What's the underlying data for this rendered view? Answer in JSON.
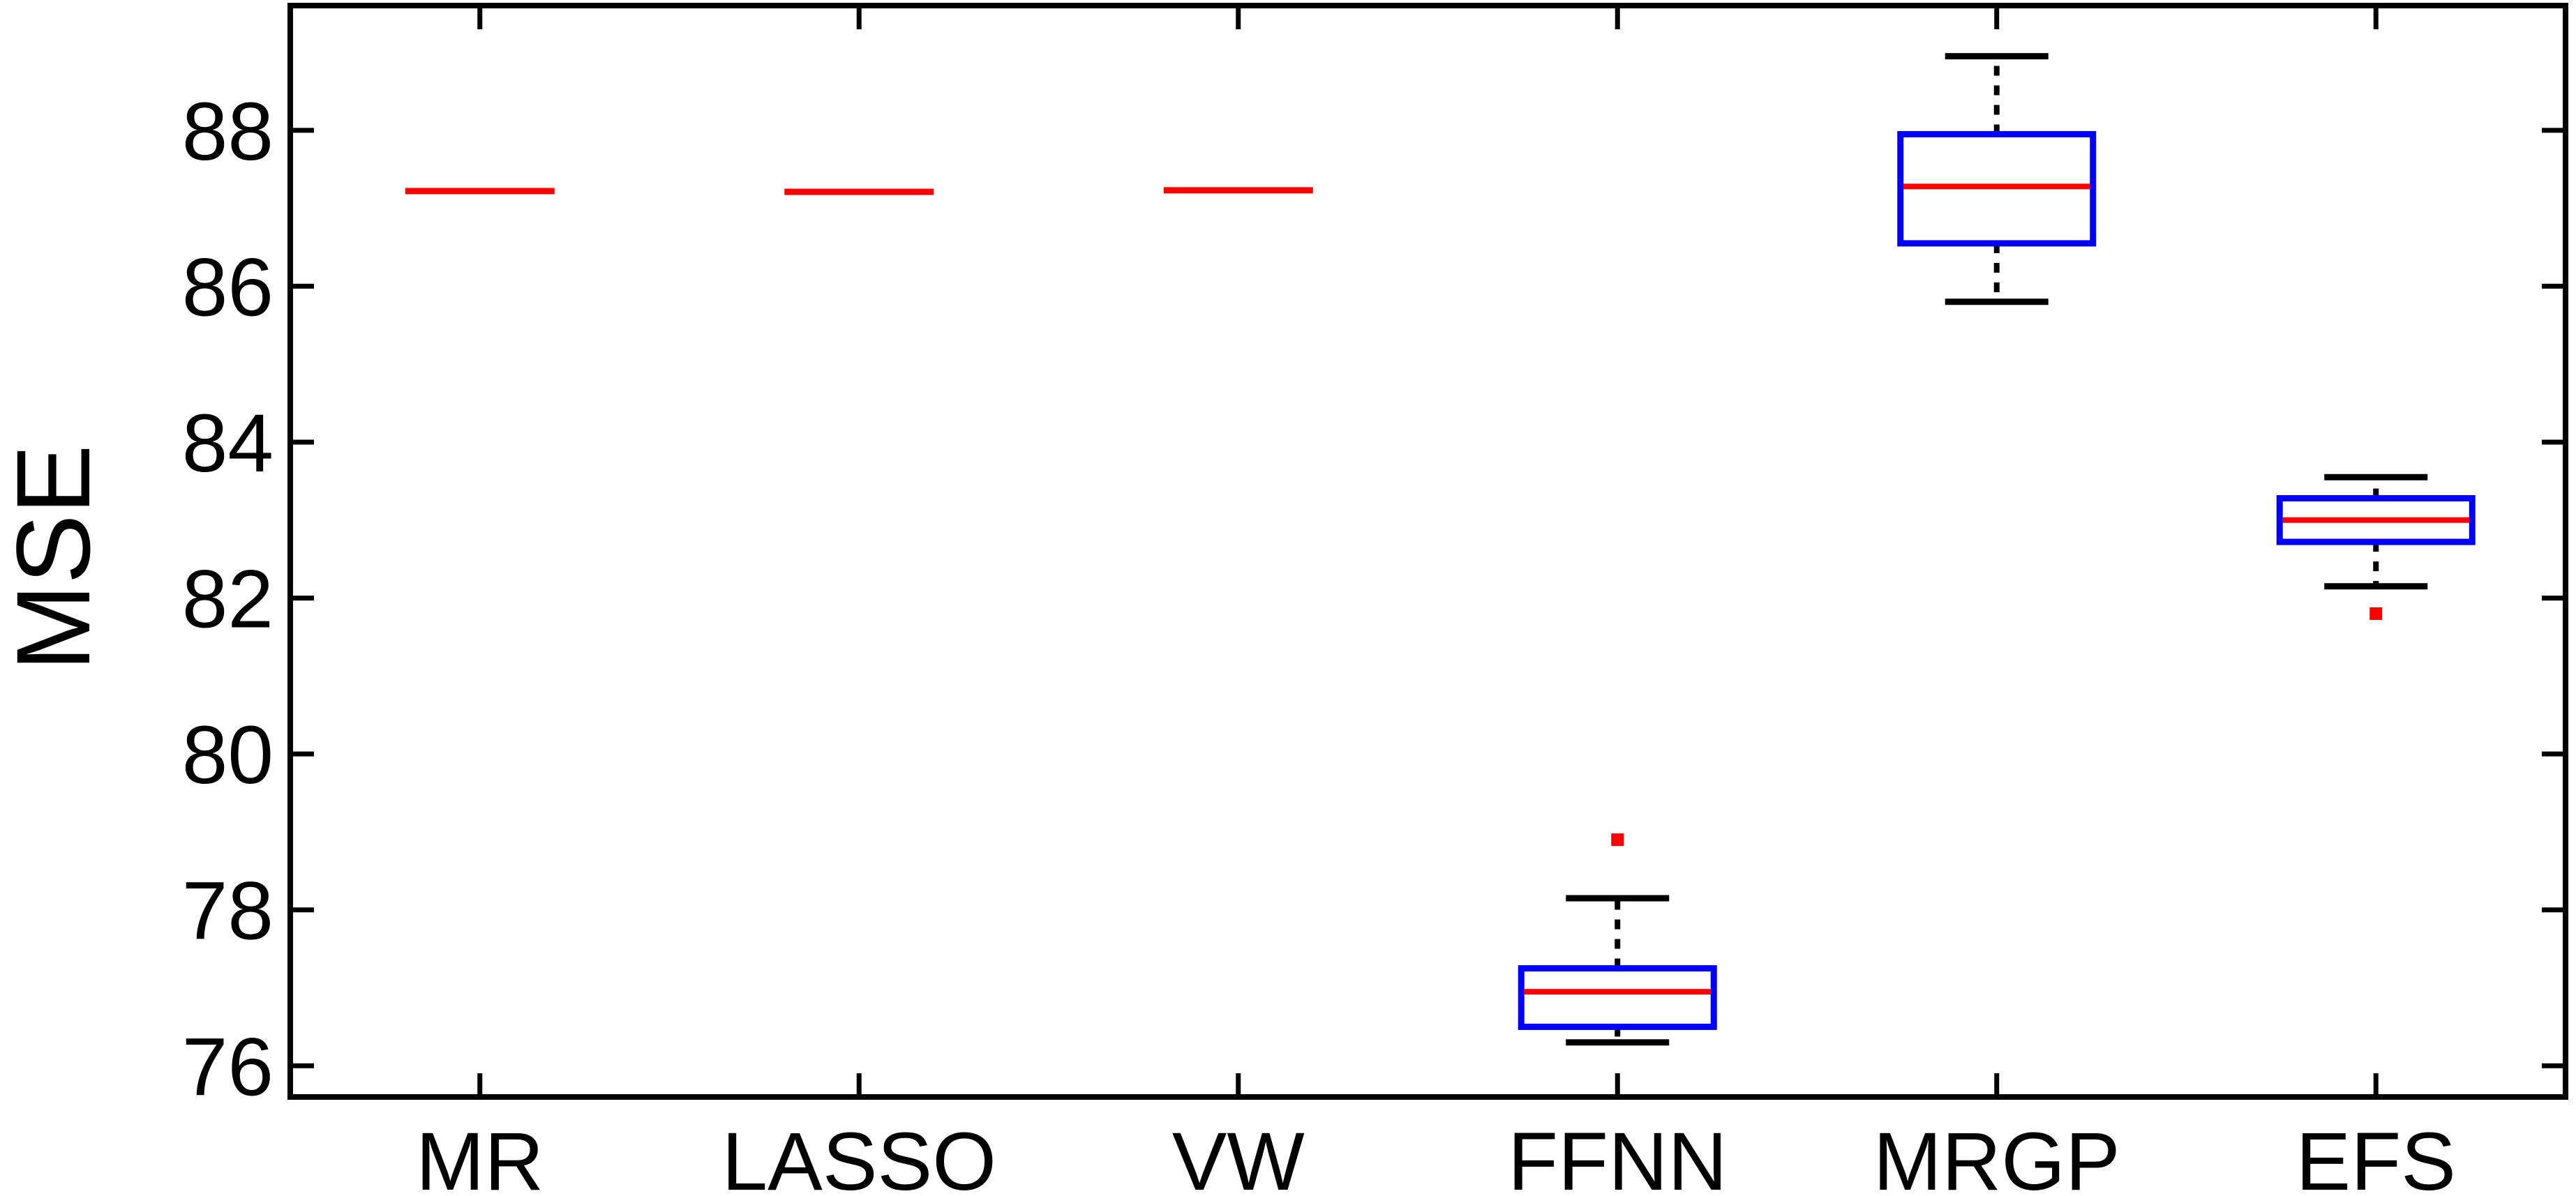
{
  "chart_data": {
    "type": "box",
    "title": "",
    "xlabel": "",
    "ylabel": "MSE",
    "ylim": [
      75.6,
      89.6
    ],
    "yticks": [
      76,
      78,
      80,
      82,
      84,
      86,
      88
    ],
    "grid": false,
    "legend": "none",
    "colors": {
      "box": "#0000ff",
      "median": "#ff0000",
      "whisker": "#000000",
      "outlier": "#ff0000",
      "axis": "#000000"
    },
    "categories": [
      "MR",
      "LASSO",
      "VW",
      "FFNN",
      "MRGP",
      "EFS"
    ],
    "boxes": [
      {
        "category": "MR",
        "min": 87.22,
        "q1": 87.22,
        "median": 87.22,
        "q3": 87.22,
        "max": 87.22,
        "outliers": []
      },
      {
        "category": "LASSO",
        "min": 87.21,
        "q1": 87.21,
        "median": 87.21,
        "q3": 87.21,
        "max": 87.21,
        "outliers": []
      },
      {
        "category": "VW",
        "min": 87.23,
        "q1": 87.23,
        "median": 87.23,
        "q3": 87.23,
        "max": 87.23,
        "outliers": []
      },
      {
        "category": "FFNN",
        "min": 76.3,
        "q1": 76.5,
        "median": 76.95,
        "q3": 77.25,
        "max": 78.15,
        "outliers": [
          78.9
        ]
      },
      {
        "category": "MRGP",
        "min": 85.8,
        "q1": 86.55,
        "median": 87.28,
        "q3": 87.95,
        "max": 88.95,
        "outliers": []
      },
      {
        "category": "EFS",
        "min": 82.15,
        "q1": 82.72,
        "median": 83.0,
        "q3": 83.28,
        "max": 83.55,
        "outliers": [
          81.8
        ]
      }
    ]
  }
}
